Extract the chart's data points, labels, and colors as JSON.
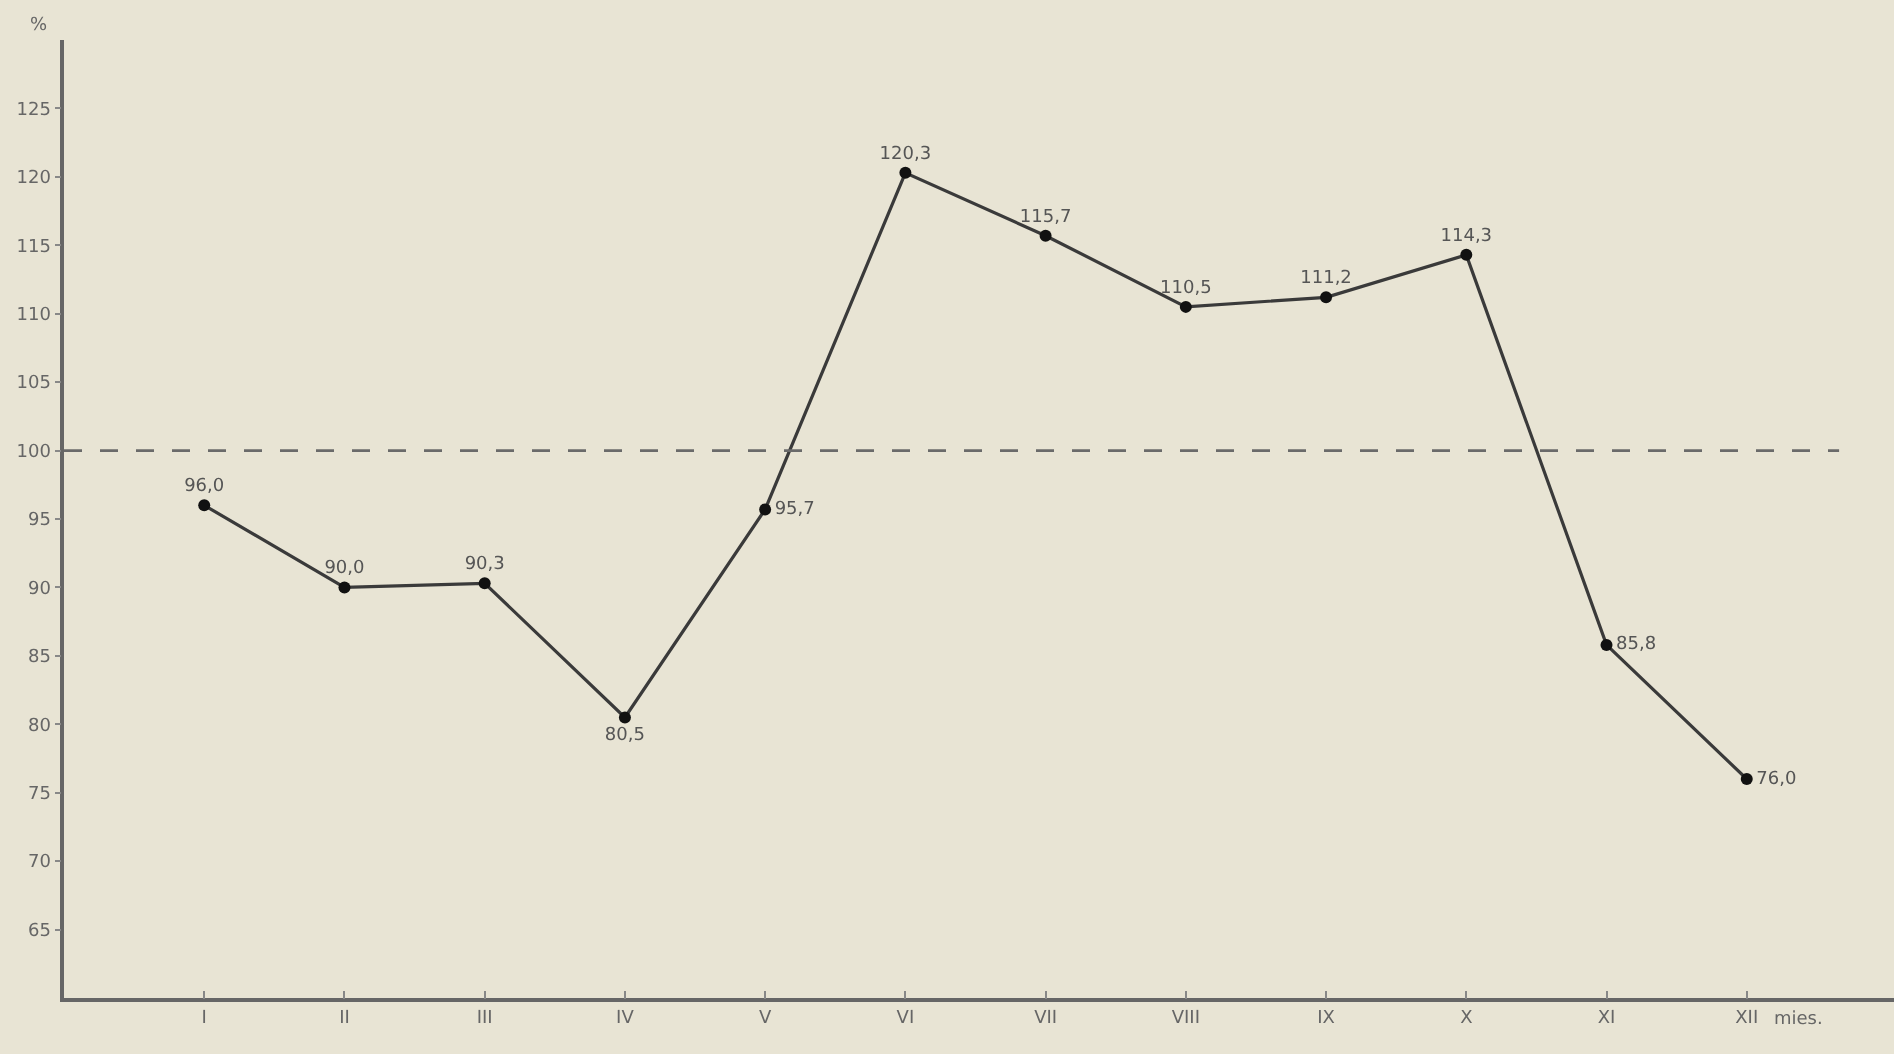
{
  "chart_data": {
    "type": "line",
    "ylabel": "%",
    "xlabel": "mies.",
    "categories": [
      "I",
      "II",
      "III",
      "IV",
      "V",
      "VI",
      "VII",
      "VIII",
      "IX",
      "X",
      "XI",
      "XII"
    ],
    "series": [
      {
        "color": "#3a3a3a",
        "values": [
          96.0,
          90.0,
          90.3,
          80.5,
          95.7,
          120.3,
          115.7,
          110.5,
          111.2,
          114.3,
          85.8,
          76.0
        ],
        "value_labels": [
          "96,0",
          "90,0",
          "90,3",
          "80,5",
          "95,7",
          "120,3",
          "115,7",
          "110,5",
          "111,2",
          "114,3",
          "85,8",
          "76,0"
        ]
      }
    ],
    "ylim": [
      60,
      130
    ],
    "yticks": [
      65,
      70,
      75,
      80,
      85,
      90,
      95,
      100,
      105,
      110,
      115,
      120,
      125
    ],
    "ref_lines": [
      {
        "axis": "y",
        "value": 100,
        "line_style": "dashed",
        "color": "#6a6a6a"
      }
    ],
    "marker": "circle",
    "line_style": "solid",
    "grid": false
  }
}
